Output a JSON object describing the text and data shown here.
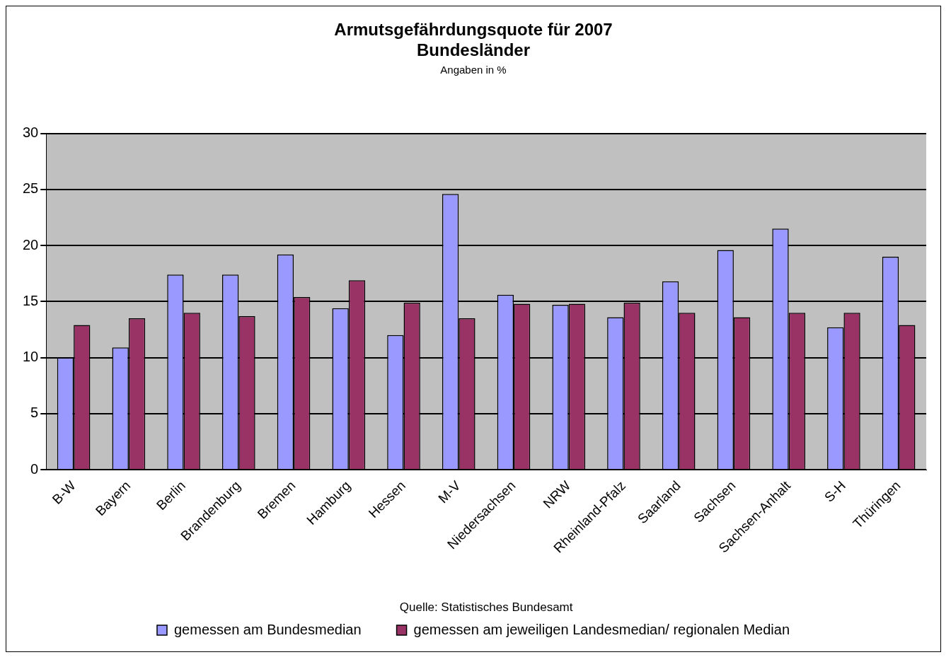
{
  "chart_data": {
    "type": "bar",
    "title": [
      "Armutsgefährdungsquote für 2007",
      "Bundesländer"
    ],
    "subtitle": "Angaben in %",
    "categories": [
      "B-W",
      "Bayern",
      "Berlin",
      "Brandenburg",
      "Bremen",
      "Hamburg",
      "Hessen",
      "M-V",
      "Niedersachsen",
      "NRW",
      "Rheinland-Pfalz",
      "Saarland",
      "Sachsen",
      "Sachsen-Anhalt",
      "S-H",
      "Thüringen"
    ],
    "series": [
      {
        "name": "gemessen am Bundesmedian",
        "color": "#9999ff",
        "values": [
          10.0,
          10.9,
          17.4,
          17.4,
          19.2,
          14.4,
          12.0,
          24.6,
          15.6,
          14.7,
          13.6,
          16.8,
          19.6,
          21.5,
          12.7,
          19.0
        ]
      },
      {
        "name": "gemessen am jeweiligen Landesmedian/ regionalen Median",
        "color": "#993366",
        "values": [
          12.9,
          13.5,
          14.0,
          13.7,
          15.4,
          16.9,
          14.9,
          13.5,
          14.8,
          14.8,
          14.9,
          14.0,
          13.6,
          14.0,
          14.0,
          12.9
        ]
      }
    ],
    "ylim": [
      0,
      30
    ],
    "yticks": [
      0,
      5,
      10,
      15,
      20,
      25,
      30
    ],
    "grid": "y",
    "legend": "bottom",
    "annotations": [
      "Quelle: Statistisches Bundesamt"
    ]
  }
}
